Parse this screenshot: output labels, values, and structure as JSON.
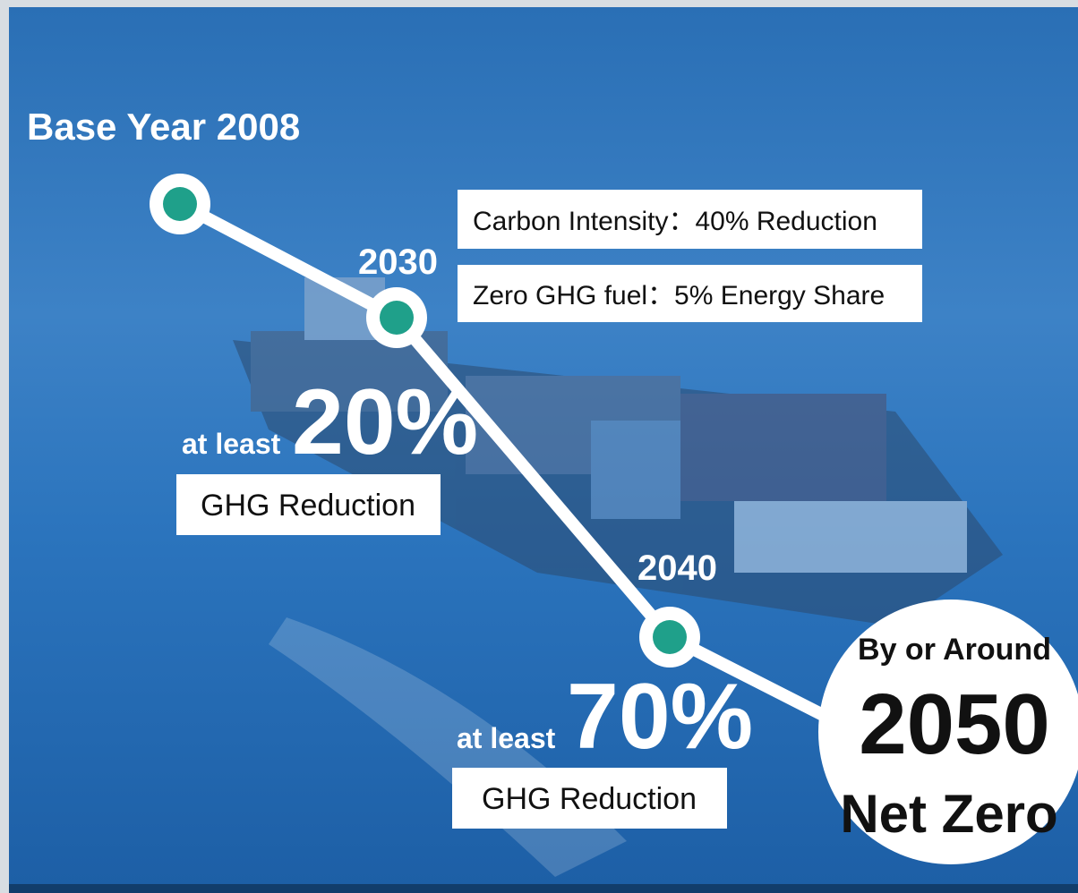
{
  "base_label": "Base Year 2008",
  "milestones": [
    {
      "year": "2030",
      "notes": [
        "Carbon Intensity：40% Reduction",
        "Zero GHG fuel：5% Energy Share"
      ],
      "prefix": "at least",
      "percent": "20%",
      "caption": "GHG Reduction"
    },
    {
      "year": "2040",
      "prefix": "at least",
      "percent": "70%",
      "caption": "GHG Reduction"
    }
  ],
  "target": {
    "lead": "By or Around",
    "year": "2050",
    "goal": "Net Zero"
  }
}
